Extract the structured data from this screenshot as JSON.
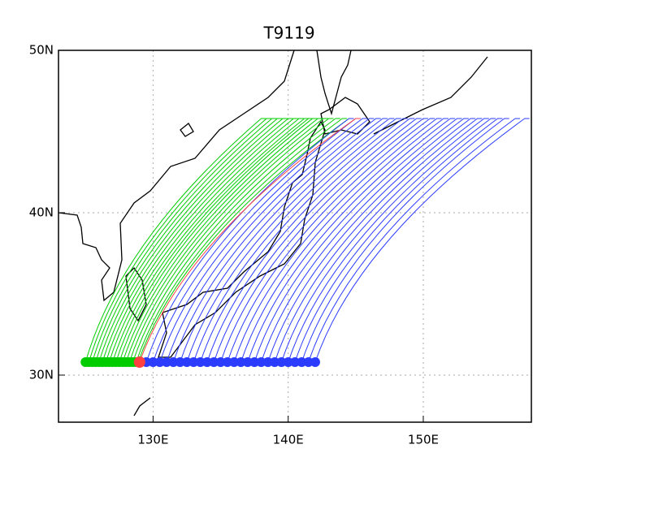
{
  "map": {
    "title": "T9119",
    "lonlim": [
      123,
      158
    ],
    "latlim": [
      27.1,
      50
    ],
    "xticks": [
      {
        "value": 130,
        "label": "130E"
      },
      {
        "value": 140,
        "label": "140E"
      },
      {
        "value": 150,
        "label": "150E"
      }
    ],
    "yticks": [
      {
        "value": 30,
        "label": "30N"
      },
      {
        "value": 40,
        "label": "40N"
      },
      {
        "value": 50,
        "label": "50N"
      }
    ],
    "grid": true,
    "start_lat": 30.8,
    "end_lat": 45.8,
    "tracks": [
      {
        "color": "#00cc00",
        "start_lons": [
          125,
          125.25,
          125.5,
          125.75,
          126,
          126.25,
          126.5,
          126.75,
          127,
          127.25,
          127.5,
          127.75,
          128,
          128.25,
          128.5,
          128.75,
          128.9
        ],
        "end_lons": [
          138,
          138.4,
          138.8,
          139.2,
          139.6,
          140,
          140.4,
          140.8,
          141.2,
          141.5,
          141.8,
          142.2,
          142.6,
          143,
          143.5,
          144,
          144.5
        ]
      },
      {
        "color": "#2b3cff",
        "start_lons": [
          129.5,
          130,
          130.5,
          131,
          131.5,
          132,
          132.5,
          133,
          133.5,
          134,
          134.5,
          135,
          135.5,
          136,
          136.5,
          137,
          137.5,
          138,
          138.5,
          139,
          139.5,
          140,
          140.5,
          141,
          141.5,
          142
        ],
        "end_lons": [
          144.5,
          145,
          145.5,
          146,
          146.5,
          147,
          147.5,
          148,
          148.5,
          149,
          149.5,
          150,
          150.5,
          151,
          151.5,
          152,
          152.5,
          153,
          153.5,
          154,
          154.5,
          155,
          155.5,
          156,
          156.8,
          157.5
        ]
      },
      {
        "color": "#ff4040",
        "start_lons": [
          129
        ],
        "end_lons": [
          145
        ]
      }
    ]
  }
}
